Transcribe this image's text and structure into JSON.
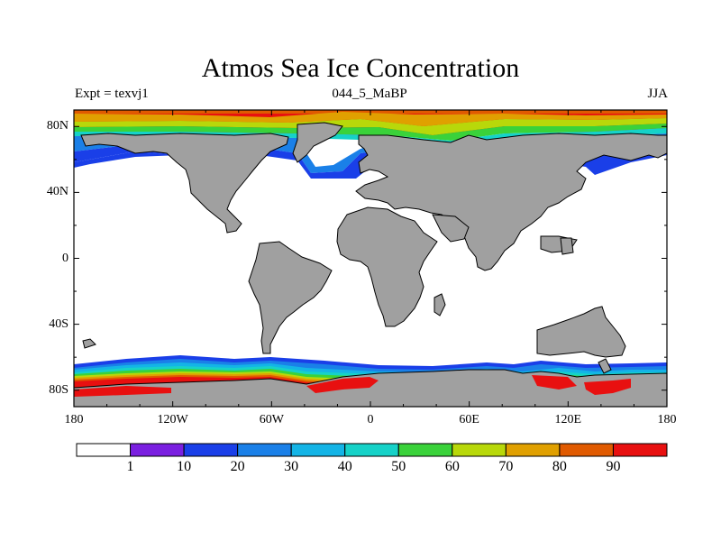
{
  "title": "Atmos Sea Ice Concentration",
  "subtitle_left": "Expt = texvj1",
  "subtitle_center": "044_5_MaBP",
  "subtitle_right": "JJA",
  "map": {
    "projection": "cylindrical equidistant",
    "lon_range": [
      -180,
      180
    ],
    "lat_range": [
      -90,
      90
    ],
    "land_color": "#a0a0a0",
    "ocean_color": "#ffffff",
    "x_ticks": [
      {
        "value": -180,
        "label": "180"
      },
      {
        "value": -120,
        "label": "120W"
      },
      {
        "value": -60,
        "label": "60W"
      },
      {
        "value": 0,
        "label": "0"
      },
      {
        "value": 60,
        "label": "60E"
      },
      {
        "value": 120,
        "label": "120E"
      },
      {
        "value": 180,
        "label": "180"
      }
    ],
    "y_ticks": [
      {
        "value": 80,
        "label": "80N"
      },
      {
        "value": 40,
        "label": "40N"
      },
      {
        "value": 0,
        "label": "0"
      },
      {
        "value": -40,
        "label": "40S"
      },
      {
        "value": -80,
        "label": "80S"
      }
    ]
  },
  "colorbar": {
    "labels": [
      "1",
      "10",
      "20",
      "30",
      "40",
      "50",
      "60",
      "70",
      "80",
      "90"
    ],
    "colors": [
      "#ffffff",
      "#7a1fe0",
      "#1a3fe8",
      "#1a80e8",
      "#14b4e6",
      "#16d2c8",
      "#3ad23a",
      "#b8d80a",
      "#e0a000",
      "#e05a00",
      "#e81010"
    ]
  }
}
